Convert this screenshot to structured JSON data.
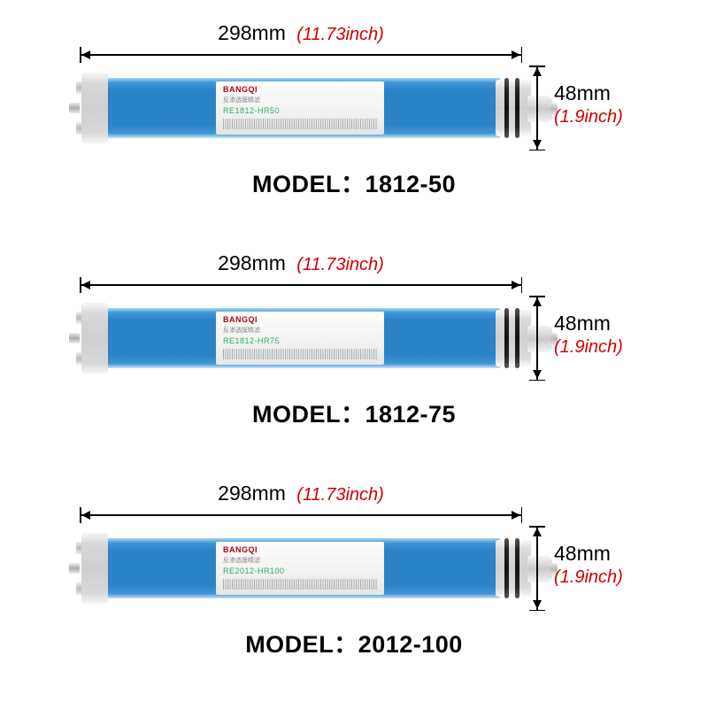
{
  "background_color": "#ffffff",
  "brand_name": "BANGQI",
  "brand_cn_line": "反渗透膜精滤",
  "tube_gradient": [
    "#a7d6f5",
    "#3f96d4",
    "#2b84c7",
    "#3f96d4",
    "#c7e4f7"
  ],
  "accent_red": "#d20000",
  "text_color": "#000000",
  "items": [
    {
      "length_mm": "298mm",
      "length_inch": "(11.73inch)",
      "diameter_mm": "48mm",
      "diameter_inch": "(1.9inch)",
      "sku": "RE1812-HR50",
      "model_label": "MODEL：1812-50"
    },
    {
      "length_mm": "298mm",
      "length_inch": "(11.73inch)",
      "diameter_mm": "48mm",
      "diameter_inch": "(1.9inch)",
      "sku": "RE1812-HR75",
      "model_label": "MODEL：1812-75"
    },
    {
      "length_mm": "298mm",
      "length_inch": "(11.73inch)",
      "diameter_mm": "48mm",
      "diameter_inch": "(1.9inch)",
      "sku": "RE2012-HR100",
      "model_label": "MODEL：2012-100"
    }
  ],
  "fonts": {
    "main": "Arial",
    "dim_size_pt": 17,
    "model_size_pt": 20
  }
}
